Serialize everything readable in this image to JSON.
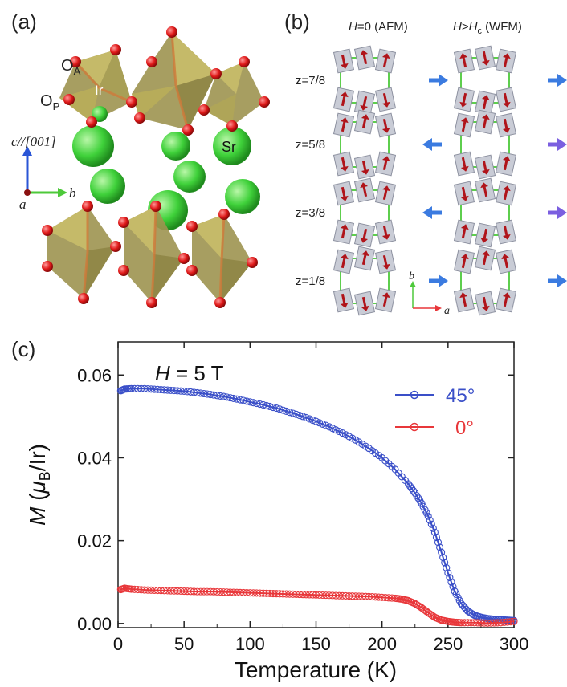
{
  "panels": {
    "a": {
      "label": "(a)",
      "atom_labels": {
        "oa": "O",
        "oa_sub": "A",
        "op": "O",
        "op_sub": "P",
        "ir": "Ir",
        "sr": "Sr"
      },
      "axes": {
        "c": "c//[001]",
        "b": "b",
        "a": "a"
      }
    },
    "b": {
      "label": "(b)",
      "col1_title_h": "H",
      "col1_title_rest": "=0 (AFM)",
      "col2_title_h": "H",
      "col2_title_gt": ">",
      "col2_title_hc": "H",
      "col2_title_c": "c",
      "col2_title_rest": " (WFM)",
      "rows": [
        {
          "label": "z=7/8",
          "afm_net": "right",
          "wfm_net": "right"
        },
        {
          "label": "z=5/8",
          "afm_net": "left",
          "wfm_net": "right"
        },
        {
          "label": "z=3/8",
          "afm_net": "left",
          "wfm_net": "right"
        },
        {
          "label": "z=1/8",
          "afm_net": "right",
          "wfm_net": "right"
        }
      ],
      "axis_b": "b",
      "axis_a": "a"
    },
    "c": {
      "label": "(c)"
    }
  },
  "colors": {
    "blue_series": "#3a4fc8",
    "red_series": "#e8373a",
    "green_frame": "#4dc93a",
    "arrow_blue": "#3b7be0",
    "arrow_purple": "#7b5fe0",
    "spin_red": "#b0141a",
    "oct_fill": "#b9ad5a",
    "sr_green": "#3fd13a",
    "oxygen_red": "#e01a1a"
  },
  "chart_data": {
    "type": "scatter",
    "title": "H = 5 T",
    "annotation_h": "H",
    "annotation_rest": " = 5 T",
    "xlabel": "Temperature (K)",
    "ylabel_m": "M",
    "ylabel_open": " (",
    "ylabel_mu": "μ",
    "ylabel_sub": "B",
    "ylabel_close": "/Ir)",
    "xlim": [
      0,
      300
    ],
    "ylim": [
      -0.001,
      0.068
    ],
    "x_ticks": [
      0,
      50,
      100,
      150,
      200,
      250,
      300
    ],
    "x_tick_labels": [
      "0",
      "50",
      "100",
      "150",
      "200",
      "250",
      "300"
    ],
    "y_ticks": [
      0.0,
      0.02,
      0.04,
      0.06
    ],
    "y_tick_labels": [
      "0.00",
      "0.02",
      "0.04",
      "0.06"
    ],
    "legend_position": "top-right",
    "series": [
      {
        "name": "45°",
        "color": "#3a4fc8",
        "x": [
          2,
          5,
          10,
          20,
          30,
          40,
          50,
          60,
          70,
          80,
          90,
          100,
          110,
          120,
          130,
          140,
          150,
          160,
          170,
          180,
          190,
          200,
          210,
          220,
          225,
          230,
          235,
          240,
          245,
          250,
          255,
          260,
          265,
          270,
          275,
          280,
          285,
          290,
          295,
          300
        ],
        "y": [
          0.0562,
          0.0566,
          0.0567,
          0.0567,
          0.0565,
          0.0563,
          0.0561,
          0.0557,
          0.0553,
          0.0548,
          0.0542,
          0.0535,
          0.0528,
          0.052,
          0.051,
          0.05,
          0.0488,
          0.0475,
          0.046,
          0.0443,
          0.0423,
          0.04,
          0.0372,
          0.0337,
          0.0315,
          0.029,
          0.0259,
          0.022,
          0.0172,
          0.0122,
          0.0078,
          0.0048,
          0.003,
          0.002,
          0.0015,
          0.0012,
          0.001,
          0.0009,
          0.0008,
          0.0007
        ]
      },
      {
        "name": "0°",
        "color": "#e8373a",
        "x": [
          2,
          5,
          10,
          20,
          30,
          40,
          50,
          60,
          70,
          80,
          90,
          100,
          110,
          120,
          130,
          140,
          150,
          160,
          170,
          180,
          190,
          200,
          210,
          215,
          220,
          225,
          230,
          235,
          240,
          245,
          250,
          255,
          260,
          270,
          280,
          290,
          300
        ],
        "y": [
          0.0082,
          0.0085,
          0.0083,
          0.0081,
          0.008,
          0.0079,
          0.0078,
          0.0077,
          0.0077,
          0.0076,
          0.0075,
          0.0074,
          0.0073,
          0.0072,
          0.0071,
          0.007,
          0.0069,
          0.0068,
          0.0067,
          0.0066,
          0.0065,
          0.0063,
          0.0061,
          0.0059,
          0.0055,
          0.0048,
          0.0038,
          0.0026,
          0.0015,
          0.0008,
          0.0005,
          0.0003,
          0.0002,
          0.0002,
          0.0001,
          0.0002,
          0.0005
        ]
      }
    ]
  }
}
